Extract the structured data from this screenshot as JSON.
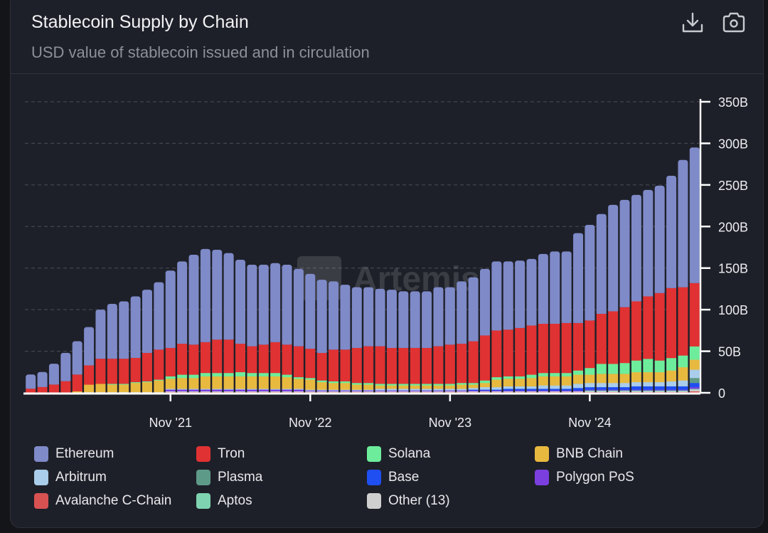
{
  "header": {
    "title": "Stablecoin Supply by Chain",
    "subtitle": "USD value of stablecoin issued and in circulation",
    "download_icon": "download-icon",
    "screenshot_icon": "camera-icon"
  },
  "watermark": "Artemis",
  "chart_data": {
    "type": "bar",
    "stacked": true,
    "title": "Stablecoin Supply by Chain",
    "subtitle": "USD value of stablecoin issued and in circulation",
    "x_start": "Nov 2020",
    "x_interval": "month",
    "x_tick_labels": [
      {
        "label": "Nov '21",
        "index": 12
      },
      {
        "label": "Nov '22",
        "index": 24
      },
      {
        "label": "Nov '23",
        "index": 36
      },
      {
        "label": "Nov '24",
        "index": 48
      }
    ],
    "y_ticks": [
      "0",
      "50B",
      "100B",
      "150B",
      "200B",
      "250B",
      "300B",
      "350B"
    ],
    "ylim": [
      0,
      350
    ],
    "yunit": "B USD",
    "grid": true,
    "legend_position": "bottom",
    "series": [
      {
        "name": "Avalanche C-Chain",
        "color": "#d95252",
        "values": [
          0,
          0,
          0,
          0,
          0,
          0,
          0,
          0,
          0,
          0,
          0,
          0,
          1,
          1,
          1,
          1,
          1,
          1,
          1,
          1,
          1,
          1,
          1,
          1,
          1,
          1,
          1,
          1,
          1,
          1,
          1,
          1,
          1,
          1,
          1,
          1,
          1,
          1,
          1,
          1,
          1,
          1,
          1,
          1,
          1,
          1,
          1,
          1,
          1,
          1,
          1,
          1,
          1,
          1,
          1,
          1,
          1,
          2
        ]
      },
      {
        "name": "Other (13)",
        "color": "#cfcfcf",
        "values": [
          0,
          0,
          0,
          0,
          0,
          1,
          1,
          1,
          1,
          1,
          1,
          1,
          1,
          1,
          1,
          1,
          1,
          1,
          1,
          1,
          1,
          1,
          1,
          1,
          1,
          1,
          1,
          1,
          1,
          1,
          1,
          1,
          1,
          1,
          1,
          1,
          1,
          1,
          1,
          1,
          1,
          1,
          1,
          1,
          1,
          1,
          1,
          1,
          1,
          1,
          1,
          1,
          1,
          1,
          1,
          1,
          1,
          2
        ]
      },
      {
        "name": "Aptos",
        "color": "#7fd3b0",
        "values": [
          0,
          0,
          0,
          0,
          0,
          0,
          0,
          0,
          0,
          0,
          0,
          0,
          0,
          0,
          0,
          0,
          0,
          0,
          0,
          0,
          0,
          0,
          0,
          0,
          0,
          0,
          0,
          0,
          0,
          0,
          0,
          0,
          0,
          0,
          0,
          0,
          0,
          0,
          0,
          0,
          0,
          0,
          0,
          0,
          0,
          0,
          0,
          0,
          1,
          1,
          1,
          1,
          1,
          1,
          1,
          1,
          1,
          1
        ]
      },
      {
        "name": "Polygon PoS",
        "color": "#7b3fe0",
        "values": [
          0,
          0,
          0,
          0,
          0,
          0,
          0,
          0,
          0,
          0,
          0,
          0,
          2,
          2,
          2,
          2,
          2,
          2,
          2,
          2,
          2,
          2,
          2,
          2,
          1,
          1,
          1,
          1,
          1,
          1,
          1,
          1,
          1,
          1,
          1,
          1,
          1,
          1,
          1,
          1,
          1,
          1,
          1,
          1,
          1,
          1,
          1,
          1,
          1,
          1,
          1,
          1,
          1,
          1,
          1,
          1,
          1,
          2
        ]
      },
      {
        "name": "Base",
        "color": "#1f4ff0",
        "values": [
          0,
          0,
          0,
          0,
          0,
          0,
          0,
          0,
          0,
          0,
          0,
          0,
          0,
          0,
          0,
          0,
          0,
          0,
          0,
          0,
          0,
          0,
          0,
          0,
          0,
          0,
          0,
          0,
          0,
          0,
          0,
          0,
          0,
          0,
          0,
          0,
          0,
          0,
          1,
          1,
          1,
          2,
          2,
          2,
          2,
          2,
          2,
          3,
          3,
          3,
          3,
          3,
          4,
          4,
          4,
          4,
          4,
          5
        ]
      },
      {
        "name": "Plasma",
        "color": "#5e9a88",
        "values": [
          0,
          0,
          0,
          0,
          0,
          0,
          0,
          0,
          0,
          0,
          0,
          0,
          0,
          0,
          0,
          0,
          0,
          0,
          0,
          0,
          0,
          0,
          0,
          0,
          0,
          0,
          0,
          0,
          0,
          0,
          0,
          0,
          0,
          0,
          0,
          0,
          0,
          0,
          0,
          0,
          0,
          0,
          0,
          0,
          0,
          0,
          0,
          0,
          0,
          0,
          0,
          0,
          0,
          0,
          0,
          0,
          0,
          6
        ]
      },
      {
        "name": "Arbitrum",
        "color": "#a9cdea",
        "values": [
          0,
          0,
          0,
          0,
          0,
          0,
          0,
          0,
          0,
          0,
          0,
          0,
          1,
          1,
          1,
          1,
          1,
          1,
          1,
          1,
          1,
          1,
          1,
          1,
          1,
          1,
          1,
          1,
          1,
          1,
          2,
          2,
          2,
          2,
          2,
          2,
          2,
          2,
          2,
          3,
          3,
          3,
          3,
          3,
          4,
          4,
          4,
          5,
          5,
          5,
          5,
          5,
          5,
          5,
          5,
          6,
          7,
          10
        ]
      },
      {
        "name": "BNB Chain",
        "color": "#e7b93f",
        "values": [
          0,
          0,
          0,
          0,
          2,
          9,
          10,
          9,
          9,
          11,
          12,
          14,
          12,
          13,
          13,
          15,
          15,
          15,
          15,
          15,
          15,
          15,
          14,
          12,
          12,
          9,
          8,
          8,
          6,
          6,
          4,
          4,
          4,
          4,
          4,
          4,
          4,
          5,
          4,
          5,
          9,
          9,
          9,
          10,
          11,
          11,
          11,
          11,
          10,
          11,
          11,
          11,
          12,
          12,
          12,
          13,
          16,
          12
        ]
      },
      {
        "name": "Solana",
        "color": "#6ded9b",
        "values": [
          0,
          0,
          0,
          0,
          0,
          0,
          0,
          1,
          1,
          1,
          1,
          1,
          3,
          4,
          4,
          4,
          4,
          4,
          5,
          4,
          4,
          4,
          3,
          2,
          2,
          2,
          2,
          2,
          2,
          2,
          2,
          2,
          2,
          2,
          2,
          2,
          2,
          2,
          2,
          3,
          3,
          3,
          3,
          4,
          4,
          4,
          4,
          5,
          8,
          12,
          12,
          13,
          14,
          16,
          14,
          15,
          14,
          16
        ]
      },
      {
        "name": "Tron",
        "color": "#e03232",
        "values": [
          5,
          7,
          10,
          14,
          20,
          23,
          30,
          30,
          30,
          29,
          34,
          36,
          34,
          37,
          36,
          37,
          40,
          40,
          34,
          32,
          34,
          37,
          36,
          37,
          35,
          33,
          38,
          38,
          42,
          44,
          45,
          43,
          43,
          43,
          43,
          45,
          47,
          47,
          50,
          54,
          56,
          56,
          58,
          59,
          59,
          59,
          60,
          57,
          57,
          60,
          63,
          67,
          71,
          75,
          81,
          84,
          82,
          76
        ]
      },
      {
        "name": "Ethereum",
        "color": "#7f8ac8",
        "values": [
          17,
          18,
          25,
          34,
          40,
          46,
          59,
          66,
          69,
          74,
          76,
          81,
          93,
          99,
          108,
          112,
          108,
          104,
          101,
          98,
          96,
          95,
          96,
          93,
          90,
          88,
          82,
          78,
          73,
          71,
          69,
          70,
          68,
          68,
          68,
          71,
          69,
          75,
          77,
          80,
          83,
          82,
          81,
          80,
          84,
          87,
          86,
          108,
          115,
          120,
          128,
          129,
          128,
          128,
          129,
          135,
          153,
          163
        ]
      }
    ]
  },
  "legend": [
    {
      "label": "Ethereum",
      "color": "#7f8ac8"
    },
    {
      "label": "Tron",
      "color": "#e03232"
    },
    {
      "label": "Solana",
      "color": "#6ded9b"
    },
    {
      "label": "BNB Chain",
      "color": "#e7b93f"
    },
    {
      "label": "Arbitrum",
      "color": "#a9cdea"
    },
    {
      "label": "Plasma",
      "color": "#5e9a88"
    },
    {
      "label": "Base",
      "color": "#1f4ff0"
    },
    {
      "label": "Polygon PoS",
      "color": "#7b3fe0"
    },
    {
      "label": "Avalanche C-Chain",
      "color": "#d95252"
    },
    {
      "label": "Aptos",
      "color": "#7fd3b0"
    },
    {
      "label": "Other (13)",
      "color": "#cfcfcf"
    }
  ]
}
